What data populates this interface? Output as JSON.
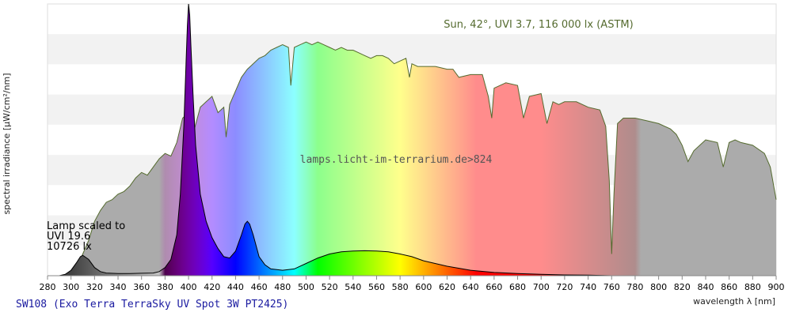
{
  "chart_data": {
    "type": "area",
    "caption": "SW108 (Exo Terra TerraSky UV Spot 3W PT2425)",
    "xlabel": "wavelength λ [nm]",
    "ylabel": "spectral irradiance [µW/cm²/nm]",
    "xlim": [
      280,
      900
    ],
    "x_ticks": [
      280,
      300,
      320,
      340,
      360,
      380,
      400,
      420,
      440,
      460,
      480,
      500,
      520,
      540,
      560,
      580,
      600,
      620,
      640,
      660,
      680,
      700,
      720,
      740,
      760,
      780,
      800,
      820,
      840,
      860,
      880,
      900
    ],
    "ylim": [
      0,
      100
    ],
    "grid": "horizontal bands",
    "annotations": {
      "sun": "Sun, 42°, UVI 3.7, 116 000 lx (ASTM)",
      "watermark": "lamps.licht-im-terrarium.de>824",
      "lamp_line1": "Lamp scaled to",
      "lamp_line2": "UVI 19.6",
      "lamp_line3": "10726 lx"
    },
    "series": [
      {
        "name": "Sun, 42°, UVI 3.7, 116 000 lx (ASTM)",
        "x": [
          300,
          305,
          310,
          315,
          320,
          325,
          330,
          335,
          340,
          345,
          350,
          355,
          360,
          365,
          370,
          375,
          380,
          385,
          390,
          395,
          400,
          405,
          410,
          415,
          420,
          425,
          430,
          432,
          435,
          440,
          445,
          450,
          455,
          460,
          465,
          470,
          475,
          480,
          485,
          487,
          490,
          495,
          500,
          505,
          510,
          515,
          520,
          525,
          530,
          535,
          540,
          545,
          550,
          555,
          560,
          565,
          570,
          575,
          580,
          585,
          588,
          590,
          595,
          600,
          610,
          620,
          625,
          630,
          640,
          650,
          655,
          658,
          660,
          665,
          670,
          680,
          685,
          690,
          700,
          705,
          710,
          715,
          720,
          725,
          730,
          740,
          750,
          755,
          758,
          760,
          762,
          765,
          770,
          780,
          790,
          800,
          810,
          815,
          820,
          825,
          830,
          840,
          850,
          855,
          860,
          865,
          870,
          880,
          890,
          895,
          900
        ],
        "y": [
          0.5,
          3,
          8,
          13,
          20,
          24,
          27,
          28,
          30,
          31,
          33,
          36,
          38,
          37,
          40,
          43,
          45,
          44,
          49,
          58,
          60,
          54,
          62,
          64,
          66,
          60,
          62,
          51,
          63,
          68,
          73,
          76,
          78,
          80,
          81,
          83,
          84,
          85,
          84,
          70,
          84,
          85,
          86,
          85,
          86,
          85,
          84,
          83,
          84,
          83,
          83,
          82,
          81,
          80,
          81,
          81,
          80,
          78,
          79,
          80,
          73,
          78,
          77,
          77,
          77,
          76,
          76,
          73,
          74,
          74,
          66,
          58,
          69,
          70,
          71,
          70,
          58,
          66,
          67,
          56,
          64,
          63,
          64,
          64,
          64,
          62,
          61,
          55,
          35,
          8,
          30,
          56,
          58,
          58,
          57,
          56,
          54,
          52,
          48,
          42,
          46,
          50,
          49,
          40,
          49,
          50,
          49,
          48,
          45,
          40,
          28
        ]
      },
      {
        "name": "SW108 (Exo Terra TerraSky UV Spot 3W PT2425)",
        "x": [
          290,
          295,
          300,
          305,
          308,
          310,
          315,
          320,
          325,
          330,
          340,
          350,
          360,
          370,
          375,
          380,
          385,
          390,
          393,
          396,
          398,
          399,
          400,
          401,
          402,
          404,
          406,
          410,
          415,
          420,
          425,
          430,
          435,
          440,
          445,
          448,
          450,
          452,
          455,
          460,
          465,
          470,
          480,
          490,
          500,
          510,
          520,
          530,
          540,
          550,
          560,
          570,
          580,
          590,
          600,
          620,
          640,
          660,
          680,
          700,
          720,
          740,
          760
        ],
        "y": [
          0,
          0.5,
          2,
          5,
          7,
          7.5,
          6,
          3,
          1.5,
          1,
          0.8,
          0.8,
          0.9,
          1,
          1.5,
          3,
          6,
          15,
          30,
          55,
          80,
          92,
          100,
          96,
          85,
          65,
          48,
          30,
          20,
          14,
          10,
          7,
          6.5,
          9,
          15,
          19,
          20,
          19,
          15,
          7,
          4,
          2.5,
          2,
          2.5,
          4.5,
          6.5,
          8,
          8.8,
          9.1,
          9.2,
          9.1,
          8.8,
          8,
          7,
          5.5,
          3.5,
          2,
          1.2,
          0.8,
          0.5,
          0.3,
          0.2,
          0
        ]
      }
    ],
    "colors": {
      "sun_line": "#556b2f",
      "lamp_line": "#000000",
      "grid_band": "#f2f2f2",
      "axis": "#888888",
      "caption": "#1a1aa0",
      "sun_annotation": "#556b2f"
    }
  }
}
